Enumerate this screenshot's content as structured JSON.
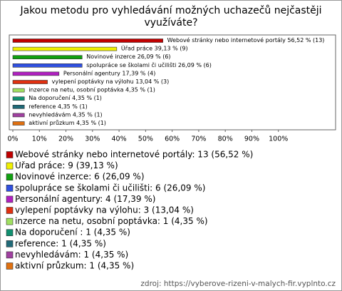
{
  "chart_data": {
    "type": "bar",
    "orientation": "horizontal",
    "title": "Jakou metodu pro vyhledávání možných uchazečů nejčastěji využíváte?",
    "categories": [
      "Webové stránky nebo internetové portály",
      "Úřad práce",
      "Novinové inzerce",
      "spolupráce se školami či učilišti",
      "Personální agentury",
      "vylepení poptávky na výlohu",
      "inzerce na netu, osobní poptávka",
      "Na doporučení",
      "reference",
      "nevyhledávám",
      "aktivní průzkum"
    ],
    "values": [
      56.52,
      39.13,
      26.09,
      26.09,
      17.39,
      13.04,
      4.35,
      4.35,
      4.35,
      4.35,
      4.35
    ],
    "value_labels": [
      "Webové stránky nebo internetové portály 56,52 % (13)",
      "Úřad práce 39,13 % (9)",
      "Novinové inzerce 26,09 % (6)",
      "spolupráce se školami či učilišti 26,09 % (6)",
      "Personální agentury 17,39 % (4)",
      "vylepení poptávky na výlohu 13,04 % (3)",
      "inzerce na netu, osobní poptávka 4,35 % (1)",
      "Na doporučení  4,35 % (1)",
      "reference 4,35 % (1)",
      "nevyhledávám 4,35 % (1)",
      "aktivní průzkum 4,35 % (1)"
    ],
    "legend_labels": [
      "Webové stránky nebo internetové portály: 13 (56,52 %)",
      "Úřad práce: 9 (39,13 %)",
      "Novinové inzerce: 6 (26,09 %)",
      "spolupráce se školami či učilišti: 6 (26,09 %)",
      "Personální agentury: 4 (17,39 %)",
      "vylepení poptávky na výlohu: 3 (13,04 %)",
      "inzerce na netu, osobní poptávka: 1 (4,35 %)",
      "Na doporučení : 1 (4,35 %)",
      "reference: 1 (4,35 %)",
      "nevyhledávám: 1 (4,35 %)",
      "aktivní průzkum: 1 (4,35 %)"
    ],
    "colors": [
      "#c00000",
      "#f0f000",
      "#10a010",
      "#3050e0",
      "#b020c0",
      "#e03010",
      "#a0e060",
      "#109070",
      "#206a78",
      "#a040a0",
      "#e07010"
    ],
    "xlim": [
      0,
      121
    ],
    "grid": false,
    "xticks": [
      {
        "value": 0,
        "label": "0%"
      },
      {
        "value": 10,
        "label": "10%"
      },
      {
        "value": 20,
        "label": "20%"
      },
      {
        "value": 30,
        "label": "30%"
      },
      {
        "value": 40,
        "label": "40%"
      },
      {
        "value": 50,
        "label": "50%"
      },
      {
        "value": 60,
        "label": "60%"
      },
      {
        "value": 70,
        "label": "70%"
      },
      {
        "value": 80,
        "label": "80%"
      },
      {
        "value": 90,
        "label": "90%"
      },
      {
        "value": 100,
        "label": "100%"
      }
    ],
    "source": "zdroj: https://vyberove-rizeni-v-malych-fir.vyplnto.cz"
  }
}
